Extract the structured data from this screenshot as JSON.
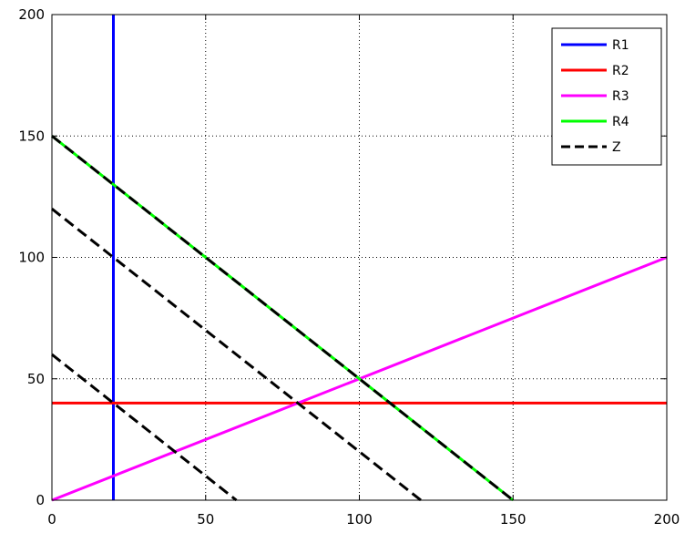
{
  "chart_data": {
    "type": "line",
    "title": "",
    "xlabel": "",
    "ylabel": "",
    "xlim": [
      0,
      200
    ],
    "ylim": [
      0,
      200
    ],
    "xticks": [
      0,
      50,
      100,
      150,
      200
    ],
    "yticks": [
      0,
      50,
      100,
      150,
      200
    ],
    "grid": true,
    "grid_style": "dotted",
    "legend_position": "top-right",
    "series": [
      {
        "name": "R1",
        "color": "#0000ff",
        "dash": "solid",
        "x": [
          20,
          20
        ],
        "y": [
          0,
          200
        ]
      },
      {
        "name": "R2",
        "color": "#ff0000",
        "dash": "solid",
        "x": [
          0,
          200
        ],
        "y": [
          40,
          40
        ]
      },
      {
        "name": "R3",
        "color": "#ff00ff",
        "dash": "solid",
        "x": [
          0,
          200
        ],
        "y": [
          0,
          100
        ]
      },
      {
        "name": "R4",
        "color": "#00ff00",
        "dash": "solid",
        "x": [
          0,
          150
        ],
        "y": [
          150,
          0
        ]
      },
      {
        "name": "Z",
        "color": "#000000",
        "dash": "dashed",
        "x": [
          0,
          150
        ],
        "y": [
          150,
          0
        ]
      }
    ],
    "extra_lines": [
      {
        "series": "Z",
        "color": "#000000",
        "dash": "dashed",
        "x": [
          0,
          120
        ],
        "y": [
          120,
          0
        ]
      },
      {
        "series": "Z",
        "color": "#000000",
        "dash": "dashed",
        "x": [
          0,
          60
        ],
        "y": [
          60,
          0
        ]
      }
    ]
  }
}
